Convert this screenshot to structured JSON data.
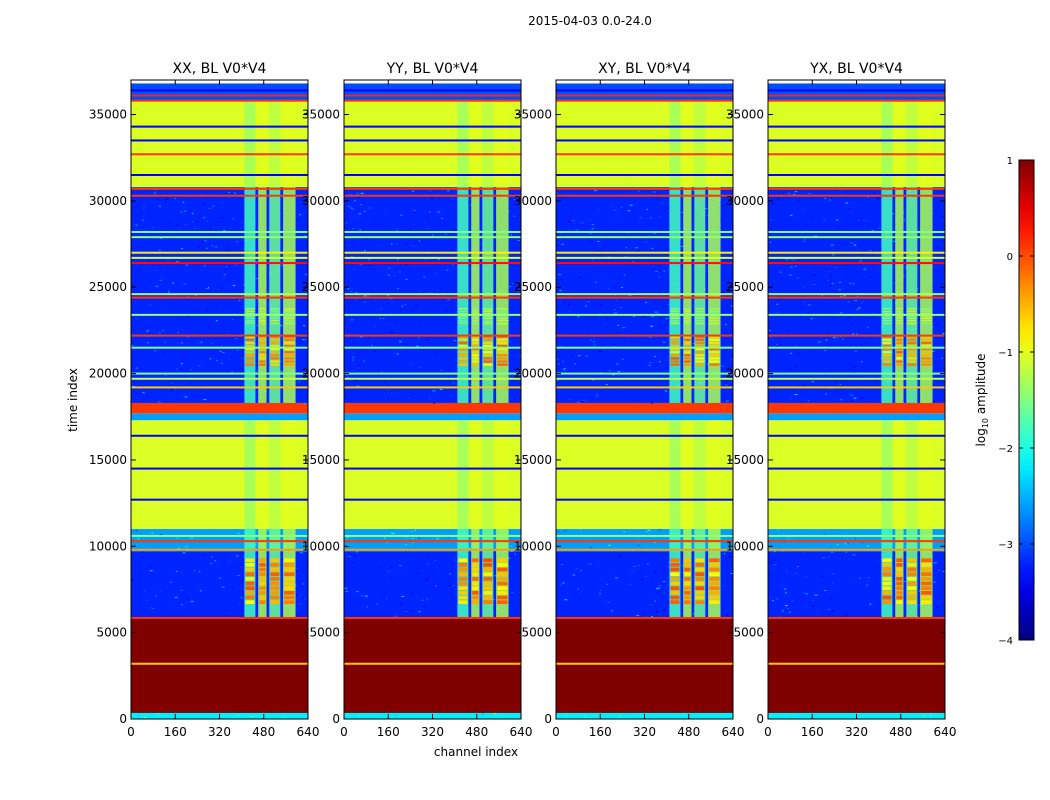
{
  "figure": {
    "title": "2015-04-03 0.0-24.0"
  },
  "chart_data": {
    "type": "heatmap",
    "xlabel": "channel index",
    "ylabel": "time index",
    "xlim": [
      0,
      640
    ],
    "ylim": [
      0,
      37000
    ],
    "x_ticks": [
      0,
      160,
      320,
      480,
      640
    ],
    "y_ticks": [
      0,
      5000,
      10000,
      15000,
      20000,
      25000,
      30000,
      35000
    ],
    "panels": [
      {
        "title": "XX, BL V0*V4"
      },
      {
        "title": "YY, BL V0*V4"
      },
      {
        "title": "XY, BL V0*V4"
      },
      {
        "title": "YX, BL V0*V4"
      }
    ],
    "colorbar": {
      "label": "log10 amplitude",
      "label_main": "log",
      "label_sub": "10",
      "label_rest": " amplitude",
      "range": [
        -4,
        1
      ],
      "ticks": [
        1,
        0,
        -1,
        -2,
        -3,
        -4
      ],
      "tick_labels": [
        "1",
        "0",
        "−1",
        "−2",
        "−3",
        "−4"
      ],
      "colormap": "jet"
    },
    "bands": [
      {
        "from": 0,
        "to": 350,
        "level": -2.2,
        "note": "noisy"
      },
      {
        "from": 350,
        "to": 5850,
        "level": 1.0
      },
      {
        "from": 5850,
        "to": 9700,
        "level": -3.2,
        "note": "noisy"
      },
      {
        "from": 9700,
        "to": 11000,
        "level": -2.6,
        "note": "noisy"
      },
      {
        "from": 11000,
        "to": 17300,
        "level": -1.05
      },
      {
        "from": 17300,
        "to": 17700,
        "level": -2.6
      },
      {
        "from": 17700,
        "to": 18300,
        "level": 0.1
      },
      {
        "from": 18300,
        "to": 30800,
        "level": -3.2,
        "note": "noisy"
      },
      {
        "from": 30800,
        "to": 35800,
        "level": -1.05
      },
      {
        "from": 35800,
        "to": 36800,
        "level": -3.0
      }
    ],
    "lines": [
      {
        "y": 3200,
        "level": -0.6
      },
      {
        "y": 5850,
        "level": 0.1
      },
      {
        "y": 9800,
        "level": -0.4
      },
      {
        "y": 10300,
        "level": 0.1
      },
      {
        "y": 10600,
        "level": -1.4
      },
      {
        "y": 12700,
        "level": -3.4
      },
      {
        "y": 14500,
        "level": -3.4
      },
      {
        "y": 16400,
        "level": -3.4
      },
      {
        "y": 19200,
        "level": -0.6
      },
      {
        "y": 19700,
        "level": -1.2
      },
      {
        "y": 20000,
        "level": -1.5
      },
      {
        "y": 21500,
        "level": -1.5
      },
      {
        "y": 22200,
        "level": 0.1
      },
      {
        "y": 23400,
        "level": -1.4
      },
      {
        "y": 24400,
        "level": 0.1
      },
      {
        "y": 24600,
        "level": -1.3
      },
      {
        "y": 26400,
        "level": 0.3
      },
      {
        "y": 26700,
        "level": -1.0
      },
      {
        "y": 27000,
        "level": -0.8
      },
      {
        "y": 27900,
        "level": -1.4
      },
      {
        "y": 28200,
        "level": -1.5
      },
      {
        "y": 30300,
        "level": 0.1
      },
      {
        "y": 30700,
        "level": 0.1
      },
      {
        "y": 31500,
        "level": -3.4
      },
      {
        "y": 32700,
        "level": 0.1
      },
      {
        "y": 33500,
        "level": -3.4
      },
      {
        "y": 34300,
        "level": -3.4
      },
      {
        "y": 35800,
        "level": 0.1
      },
      {
        "y": 36100,
        "level": 0.2
      },
      {
        "y": 36400,
        "level": -3.4
      }
    ],
    "channel_bands": [
      {
        "from": 410,
        "to": 450,
        "level": -1.8
      },
      {
        "from": 460,
        "to": 490,
        "level": -1.3
      },
      {
        "from": 500,
        "to": 540,
        "level": -1.6
      },
      {
        "from": 550,
        "to": 595,
        "level": -1.3
      }
    ],
    "hot_spots": [
      {
        "x_from": 410,
        "x_to": 595,
        "y_from": 6600,
        "y_to": 9300,
        "level": 0.0
      },
      {
        "x_from": 410,
        "x_to": 595,
        "y_from": 20400,
        "y_to": 22200,
        "level": 0.0
      },
      {
        "x_from": 410,
        "x_to": 595,
        "y_from": 22800,
        "y_to": 23800,
        "level": -0.8
      }
    ]
  }
}
